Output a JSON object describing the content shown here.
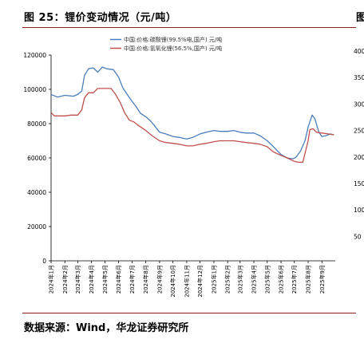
{
  "figure": {
    "title": "图 25：锂价变动情况（元/吨）",
    "right_cut_title": "图",
    "source": "数据来源：Wind，华龙证券研究所"
  },
  "right_axis_ticks": [
    "400",
    "350",
    "300",
    "250",
    "200",
    "150",
    "100",
    "50"
  ],
  "chart_data": {
    "type": "line",
    "title": "",
    "xlabel": "",
    "ylabel": "",
    "ylim": [
      0,
      120000
    ],
    "yticks": [
      0,
      20000,
      40000,
      60000,
      80000,
      100000,
      120000
    ],
    "xlim": [
      "2024-01-01",
      "2025-10-01"
    ],
    "xticks": [
      "2024年1月",
      "2024年2月",
      "2024年3月",
      "2024年4月",
      "2024年5月",
      "2024年6月",
      "2024年7月",
      "2024年8月",
      "2024年9月",
      "2024年10月",
      "2024年11月",
      "2024年12月",
      "2025年1月",
      "2025年2月",
      "2025年3月",
      "2025年4月",
      "2025年5月",
      "2025年6月",
      "2025年7月",
      "2025年8月",
      "2025年9月"
    ],
    "legend_position": "top-center",
    "grid": false,
    "series": [
      {
        "name": "中国:价格:碳酸锂(99.5%电,国产)  元/吨",
        "color": "#4a7ebb",
        "points": [
          [
            "2024-01-01",
            97000
          ],
          [
            "2024-01-15",
            95500
          ],
          [
            "2024-02-01",
            96500
          ],
          [
            "2024-02-20",
            96000
          ],
          [
            "2024-03-01",
            97000
          ],
          [
            "2024-03-10",
            99000
          ],
          [
            "2024-03-16",
            108000
          ],
          [
            "2024-03-25",
            112000
          ],
          [
            "2024-04-05",
            112500
          ],
          [
            "2024-04-15",
            110000
          ],
          [
            "2024-04-25",
            113000
          ],
          [
            "2024-05-05",
            112000
          ],
          [
            "2024-05-20",
            111500
          ],
          [
            "2024-06-01",
            107000
          ],
          [
            "2024-06-10",
            101000
          ],
          [
            "2024-06-20",
            97000
          ],
          [
            "2024-07-01",
            93000
          ],
          [
            "2024-07-10",
            90000
          ],
          [
            "2024-07-20",
            86000
          ],
          [
            "2024-08-01",
            84000
          ],
          [
            "2024-08-10",
            82000
          ],
          [
            "2024-08-20",
            79000
          ],
          [
            "2024-09-01",
            75000
          ],
          [
            "2024-09-15",
            74000
          ],
          [
            "2024-10-01",
            72500
          ],
          [
            "2024-10-15",
            72000
          ],
          [
            "2024-11-01",
            71000
          ],
          [
            "2024-11-15",
            72000
          ],
          [
            "2024-12-01",
            74000
          ],
          [
            "2024-12-15",
            75000
          ],
          [
            "2025-01-01",
            76000
          ],
          [
            "2025-01-15",
            75500
          ],
          [
            "2025-02-01",
            75500
          ],
          [
            "2025-02-15",
            76000
          ],
          [
            "2025-03-01",
            75000
          ],
          [
            "2025-03-15",
            74500
          ],
          [
            "2025-04-01",
            74500
          ],
          [
            "2025-04-15",
            73000
          ],
          [
            "2025-05-01",
            70000
          ],
          [
            "2025-05-15",
            66500
          ],
          [
            "2025-06-01",
            62000
          ],
          [
            "2025-06-15",
            60000
          ],
          [
            "2025-06-28",
            59500
          ],
          [
            "2025-07-05",
            60500
          ],
          [
            "2025-07-15",
            64000
          ],
          [
            "2025-07-25",
            70000
          ],
          [
            "2025-08-01",
            78000
          ],
          [
            "2025-08-10",
            85000
          ],
          [
            "2025-08-16",
            83000
          ],
          [
            "2025-08-25",
            75000
          ],
          [
            "2025-09-01",
            72500
          ],
          [
            "2025-09-10",
            73000
          ],
          [
            "2025-09-20",
            74000
          ],
          [
            "2025-09-28",
            73500
          ]
        ]
      },
      {
        "name": "中国:价格:氢氧化锂(56.5%,国产)  元/吨",
        "color": "#c0504d",
        "points": [
          [
            "2024-01-01",
            86500
          ],
          [
            "2024-01-08",
            84500
          ],
          [
            "2024-02-01",
            84500
          ],
          [
            "2024-02-15",
            85000
          ],
          [
            "2024-03-01",
            85000
          ],
          [
            "2024-03-10",
            88000
          ],
          [
            "2024-03-16",
            95000
          ],
          [
            "2024-03-25",
            98000
          ],
          [
            "2024-04-05",
            98000
          ],
          [
            "2024-04-15",
            100500
          ],
          [
            "2024-05-01",
            100500
          ],
          [
            "2024-05-15",
            100500
          ],
          [
            "2024-05-25",
            97000
          ],
          [
            "2024-06-05",
            92000
          ],
          [
            "2024-06-15",
            86000
          ],
          [
            "2024-06-25",
            82000
          ],
          [
            "2024-07-05",
            81000
          ],
          [
            "2024-07-15",
            79000
          ],
          [
            "2024-08-01",
            76000
          ],
          [
            "2024-08-15",
            73000
          ],
          [
            "2024-09-01",
            70000
          ],
          [
            "2024-09-15",
            69000
          ],
          [
            "2024-10-01",
            68500
          ],
          [
            "2024-10-15",
            68000
          ],
          [
            "2024-11-01",
            67000
          ],
          [
            "2024-11-15",
            67000
          ],
          [
            "2024-12-01",
            68000
          ],
          [
            "2024-12-15",
            68500
          ],
          [
            "2025-01-01",
            69500
          ],
          [
            "2025-01-15",
            70000
          ],
          [
            "2025-02-01",
            70000
          ],
          [
            "2025-02-15",
            70000
          ],
          [
            "2025-03-01",
            69500
          ],
          [
            "2025-03-15",
            69000
          ],
          [
            "2025-04-01",
            68500
          ],
          [
            "2025-04-15",
            68000
          ],
          [
            "2025-05-01",
            66500
          ],
          [
            "2025-05-15",
            63500
          ],
          [
            "2025-06-01",
            61500
          ],
          [
            "2025-06-15",
            60000
          ],
          [
            "2025-07-01",
            58000
          ],
          [
            "2025-07-10",
            57500
          ],
          [
            "2025-07-20",
            57500
          ],
          [
            "2025-08-01",
            70000
          ],
          [
            "2025-08-05",
            76500
          ],
          [
            "2025-08-12",
            77000
          ],
          [
            "2025-08-20",
            75000
          ],
          [
            "2025-09-01",
            74500
          ],
          [
            "2025-09-15",
            74000
          ],
          [
            "2025-09-28",
            73500
          ]
        ]
      }
    ]
  }
}
